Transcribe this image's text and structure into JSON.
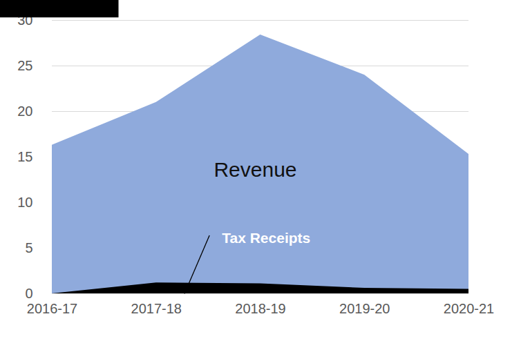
{
  "chart_data": {
    "type": "area",
    "categories": [
      "2016-17",
      "2017-18",
      "2018-19",
      "2019-20",
      "2020-21"
    ],
    "series": [
      {
        "name": "Revenue",
        "color": "#8faadc",
        "values": [
          16.3,
          21.0,
          28.4,
          24.0,
          15.3
        ]
      },
      {
        "name": "Tax Receipts",
        "color": "#000000",
        "values": [
          0.0,
          1.2,
          1.1,
          0.6,
          0.5
        ]
      }
    ],
    "stacked": false,
    "ylim": [
      0,
      30
    ],
    "yticks": [
      0,
      5,
      10,
      15,
      20,
      25,
      30
    ],
    "grid": true
  }
}
